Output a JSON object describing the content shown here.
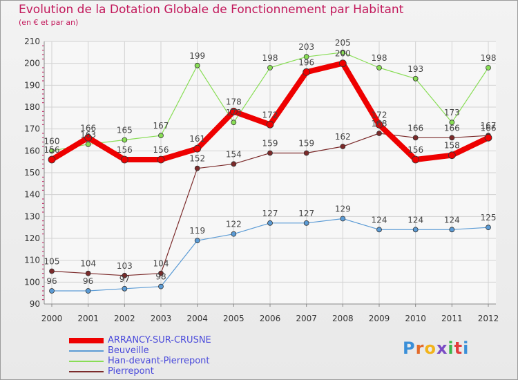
{
  "header": {
    "title": "Evolution de la Dotation Globale de Fonctionnement par Habitant",
    "subtitle": "(en € et par an)"
  },
  "chart_data": {
    "type": "line",
    "x": [
      "2000",
      "2001",
      "2002",
      "2003",
      "2004",
      "2005",
      "2006",
      "2007",
      "2008",
      "2009",
      "2010",
      "2011",
      "2012"
    ],
    "ylim": [
      90,
      210
    ],
    "yticks": [
      90,
      100,
      110,
      120,
      130,
      140,
      150,
      160,
      170,
      180,
      190,
      200,
      210
    ],
    "grid": true,
    "legend_position": "bottom-left",
    "series": [
      {
        "name": "Han-devant-Pierrepont",
        "color": "#88dd55",
        "line_width": 1.2,
        "marker_radius": 3.5,
        "values": [
          160,
          163,
          165,
          167,
          199,
          173,
          198,
          203,
          205,
          198,
          193,
          173,
          198
        ]
      },
      {
        "name": "Beuveille",
        "color": "#5b9bd5",
        "line_width": 1.2,
        "marker_radius": 3.5,
        "values": [
          96,
          96,
          97,
          98,
          119,
          122,
          127,
          127,
          129,
          124,
          124,
          124,
          125
        ]
      },
      {
        "name": "Pierrepont",
        "color": "#7b2a2a",
        "line_width": 1.2,
        "marker_radius": 3.5,
        "values": [
          105,
          104,
          103,
          104,
          152,
          154,
          159,
          159,
          162,
          168,
          166,
          166,
          167
        ]
      },
      {
        "name": "ARRANCY-SUR-CRUSNE",
        "color": "#ee0000",
        "line_width": 8,
        "marker_radius": 5,
        "values": [
          156,
          166,
          156,
          156,
          161,
          178,
          172,
          196,
          200,
          172,
          156,
          158,
          166
        ]
      }
    ],
    "legend_order": [
      "ARRANCY-SUR-CRUSNE",
      "Beuveille",
      "Han-devant-Pierrepont",
      "Pierrepont"
    ]
  },
  "logo": {
    "letters": [
      "P",
      "r",
      "o",
      "x",
      "i",
      "t",
      "i"
    ],
    "colors": [
      "#3a8fd8",
      "#e36b2a",
      "#f2b31b",
      "#7a4bc4",
      "#3cb54a",
      "#e23c3c",
      "#3a8fd8"
    ]
  }
}
